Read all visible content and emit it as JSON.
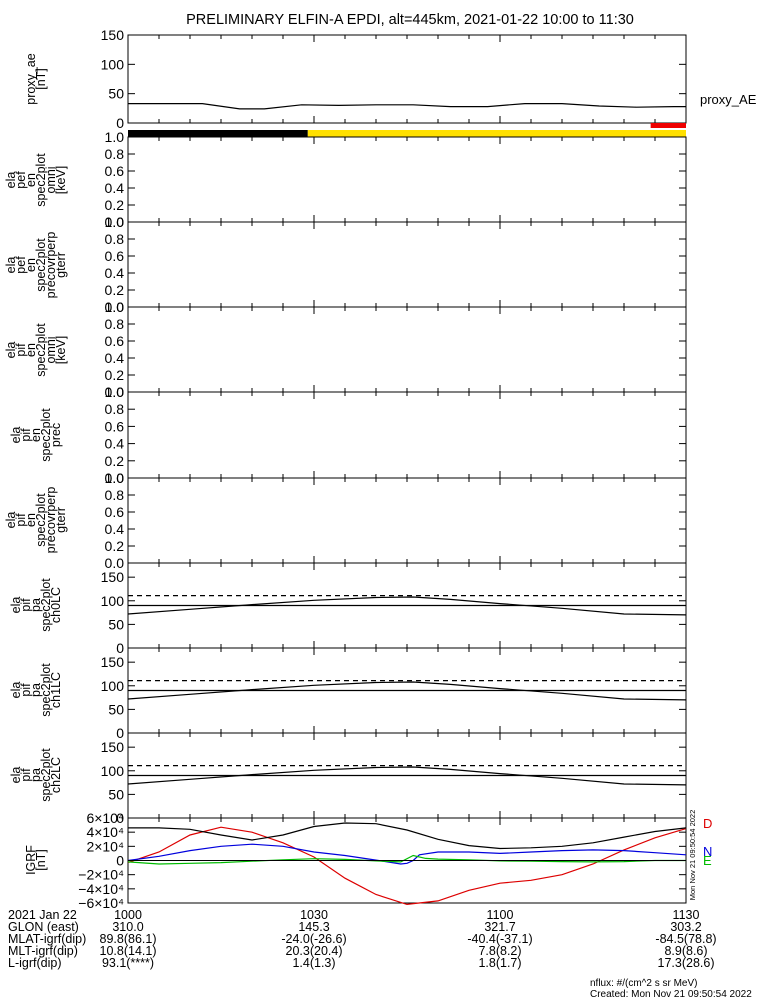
{
  "title": "PRELIMINARY ELFIN-A EPDI, alt=445km, 2021-01-22 10:00 to 11:30",
  "colors": {
    "axis": "#000000",
    "flag_black": "#000000",
    "flag_yellow": "#ffe000",
    "flag_red": "#ee0000",
    "igrf_D": "#dd0000",
    "igrf_N": "#0000dd",
    "igrf_E": "#00bb00",
    "igrf_total": "#000000"
  },
  "chart_data": [
    {
      "id": "proxy_ae",
      "type": "line",
      "ylabel_lines": [
        "proxy_ae",
        "[nT]"
      ],
      "ylim": [
        0,
        150
      ],
      "yticks": [
        "0",
        "50",
        "100",
        "150"
      ],
      "legend": "proxy_AE",
      "series": [
        {
          "x": [
            0,
            6,
            12,
            18,
            22,
            28,
            34,
            40,
            46,
            52,
            58,
            64,
            70,
            76,
            82,
            88,
            90
          ],
          "y": [
            33,
            33,
            33,
            24,
            24,
            31,
            30,
            31,
            31,
            28,
            28,
            33,
            33,
            29,
            27,
            28,
            28
          ]
        }
      ]
    },
    {
      "id": "flags",
      "type": "bar",
      "segments": [
        {
          "x0": 0,
          "x1": 29,
          "color": "black"
        },
        {
          "x0": 29,
          "x1": 90,
          "color": "yellow"
        }
      ],
      "red_bar": {
        "x0": 84.3,
        "x1": 90
      }
    },
    {
      "id": "pef_omni",
      "type": "heatmap",
      "ylabel_lines": [
        "ela",
        "pef",
        "en",
        "spec2plot",
        "omni",
        "[keV]"
      ],
      "ylim": [
        0,
        1
      ],
      "yticks": [
        "0.0",
        "0.2",
        "0.4",
        "0.6",
        "0.8",
        "1.0"
      ]
    },
    {
      "id": "pef_precovrperp",
      "type": "heatmap",
      "ylabel_lines": [
        "ela",
        "pef",
        "en",
        "spec2plot",
        "precovrperp",
        "gterr"
      ],
      "ylim": [
        0,
        1
      ],
      "yticks": [
        "0.0",
        "0.2",
        "0.4",
        "0.6",
        "0.8",
        "1.0"
      ]
    },
    {
      "id": "pif_omni",
      "type": "heatmap",
      "ylabel_lines": [
        "ela",
        "pif",
        "en",
        "spec2plot",
        "omni",
        "[keV]"
      ],
      "ylim": [
        0,
        1
      ],
      "yticks": [
        "0.0",
        "0.2",
        "0.4",
        "0.6",
        "0.8",
        "1.0"
      ]
    },
    {
      "id": "pif_prec",
      "type": "heatmap",
      "ylabel_lines": [
        "ela",
        "pif",
        "en",
        "spec2plot",
        "prec"
      ],
      "ylim": [
        0,
        1
      ],
      "yticks": [
        "0.0",
        "0.2",
        "0.4",
        "0.6",
        "0.8",
        "1.0"
      ]
    },
    {
      "id": "pif_precovrperp",
      "type": "heatmap",
      "ylabel_lines": [
        "ela",
        "pif",
        "en",
        "spec2plot",
        "precovrperp",
        "gterr"
      ],
      "ylim": [
        0,
        1
      ],
      "yticks": [
        "0.0",
        "0.2",
        "0.4",
        "0.6",
        "0.8",
        "1.0"
      ]
    },
    {
      "id": "ch0LC",
      "type": "line",
      "ylabel_lines": [
        "ela",
        "pif",
        "pa",
        "spec2plot",
        "ch0LC"
      ],
      "ylim": [
        0,
        180
      ],
      "yticks": [
        "0",
        "50",
        "100",
        "150"
      ],
      "series": [
        {
          "style": "solid",
          "x": [
            0,
            10,
            20,
            30,
            40,
            46,
            52,
            60,
            70,
            80,
            90
          ],
          "y": [
            72,
            82,
            92,
            101,
            107,
            108,
            103,
            94,
            84,
            72,
            70
          ]
        },
        {
          "style": "solid",
          "x": [
            0,
            90
          ],
          "y": [
            90,
            90
          ]
        },
        {
          "style": "dashed",
          "x": [
            0,
            90
          ],
          "y": [
            111,
            111
          ]
        }
      ]
    },
    {
      "id": "ch1LC",
      "type": "line",
      "ylabel_lines": [
        "ela",
        "pif",
        "pa",
        "spec2plot",
        "ch1LC"
      ],
      "ylim": [
        0,
        180
      ],
      "yticks": [
        "0",
        "50",
        "100",
        "150"
      ],
      "series": [
        {
          "style": "solid",
          "x": [
            0,
            10,
            20,
            30,
            40,
            46,
            52,
            60,
            70,
            80,
            90
          ],
          "y": [
            72,
            82,
            92,
            101,
            107,
            108,
            103,
            94,
            84,
            72,
            70
          ]
        },
        {
          "style": "solid",
          "x": [
            0,
            90
          ],
          "y": [
            90,
            90
          ]
        },
        {
          "style": "dashed",
          "x": [
            0,
            90
          ],
          "y": [
            111,
            111
          ]
        }
      ]
    },
    {
      "id": "ch2LC",
      "type": "line",
      "ylabel_lines": [
        "ela",
        "pif",
        "pa",
        "spec2plot",
        "ch2LC"
      ],
      "ylim": [
        0,
        180
      ],
      "yticks": [
        "0",
        "50",
        "100",
        "150"
      ],
      "series": [
        {
          "style": "solid",
          "x": [
            0,
            10,
            20,
            30,
            40,
            46,
            52,
            60,
            70,
            80,
            90
          ],
          "y": [
            72,
            82,
            92,
            101,
            107,
            108,
            103,
            94,
            84,
            72,
            70
          ]
        },
        {
          "style": "solid",
          "x": [
            0,
            90
          ],
          "y": [
            90,
            90
          ]
        },
        {
          "style": "dashed",
          "x": [
            0,
            90
          ],
          "y": [
            111,
            111
          ]
        }
      ]
    },
    {
      "id": "igrf",
      "type": "line",
      "ylabel_lines": [
        "IGRF",
        "[nT]"
      ],
      "ylim": [
        -60000,
        60000
      ],
      "yticks": [
        {
          "v": 60000,
          "label": "6×10⁴"
        },
        {
          "v": 40000,
          "label": "4×10⁴"
        },
        {
          "v": 20000,
          "label": "2×10⁴"
        },
        {
          "v": 0,
          "label": "0"
        },
        {
          "v": -20000,
          "label": "−2×10⁴"
        },
        {
          "v": -40000,
          "label": "−4×10⁴"
        },
        {
          "v": -60000,
          "label": "−6×10⁴"
        }
      ],
      "series": [
        {
          "name": "D",
          "color": "red",
          "x": [
            0,
            5,
            10,
            15,
            20,
            25,
            30,
            35,
            40,
            45,
            50,
            55,
            60,
            65,
            70,
            75,
            80,
            85,
            90
          ],
          "y": [
            -3000,
            12000,
            36000,
            47000,
            40000,
            25000,
            5000,
            -25000,
            -48000,
            -62000,
            -57000,
            -42000,
            -32000,
            -28000,
            -20000,
            -5000,
            15000,
            32000,
            45000
          ]
        },
        {
          "name": "N",
          "color": "blue",
          "x": [
            0,
            5,
            10,
            15,
            20,
            25,
            30,
            35,
            40,
            44,
            45,
            46,
            47,
            50,
            55,
            60,
            65,
            70,
            75,
            80,
            85,
            90
          ],
          "y": [
            0,
            6000,
            14000,
            20000,
            23000,
            20000,
            12000,
            7000,
            500,
            -5000,
            -4000,
            0,
            8000,
            12000,
            12000,
            10000,
            12000,
            14000,
            15000,
            14000,
            11000,
            8000
          ]
        },
        {
          "name": "E",
          "color": "green",
          "x": [
            0,
            5,
            10,
            15,
            20,
            25,
            30,
            35,
            40,
            44,
            46,
            48,
            50,
            55,
            60,
            65,
            70,
            75,
            80,
            85,
            90
          ],
          "y": [
            -2000,
            -5000,
            -4000,
            -3000,
            -1000,
            1000,
            2500,
            1500,
            -500,
            -2000,
            7000,
            3000,
            2000,
            1000,
            -500,
            -1000,
            -1500,
            -2000,
            -1500,
            0,
            0
          ]
        },
        {
          "name": "total",
          "color": "black",
          "x": [
            0,
            5,
            10,
            15,
            20,
            25,
            30,
            35,
            40,
            45,
            50,
            55,
            60,
            65,
            70,
            75,
            80,
            85,
            90
          ],
          "y": [
            46000,
            46000,
            44000,
            36000,
            29000,
            36000,
            48000,
            53000,
            52000,
            43000,
            30000,
            21000,
            17000,
            18000,
            20000,
            25000,
            33000,
            41000,
            46000
          ]
        }
      ],
      "right_labels": [
        "D",
        "N",
        "E"
      ],
      "side_text": "Mon Nov 21 09:50:54 2022"
    }
  ],
  "xaxis": {
    "xlim": [
      0,
      90
    ],
    "major": [
      {
        "v": 0,
        "label": "1000"
      },
      {
        "v": 30,
        "label": "1030"
      },
      {
        "v": 60,
        "label": "1100"
      },
      {
        "v": 90,
        "label": "1130"
      }
    ],
    "minor_step": 5
  },
  "footer": {
    "rows": [
      {
        "label": "2021 Jan 22",
        "v1": "1000",
        "v2": "1030",
        "v3": "1100",
        "v4": "1130"
      },
      {
        "label": "GLON (east)",
        "v1": "310.0",
        "v2": "145.3",
        "v3": "321.7",
        "v4": "303.2"
      },
      {
        "label": "MLAT-igrf(dip)",
        "v1": "89.8(86.1)",
        "v2": "-24.0(-26.6)",
        "v3": "-40.4(-37.1)",
        "v4": "-84.5(78.8)"
      },
      {
        "label": "MLT-igrf(dip)",
        "v1": "10.8(14.1)",
        "v2": "20.3(20.4)",
        "v3": "7.8(8.2)",
        "v4": "8.9(8.6)"
      },
      {
        "label": "L-igrf(dip)",
        "v1": "93.1(****)",
        "v2": "1.4(1.3)",
        "v3": "1.8(1.7)",
        "v4": "17.3(28.6)"
      }
    ],
    "nflux": "nflux: #/(cm^2 s sr MeV)",
    "created": "Created: Mon Nov 21 09:50:54 2022"
  }
}
